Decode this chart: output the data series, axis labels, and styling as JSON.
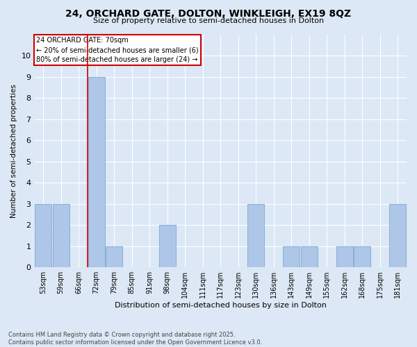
{
  "title": "24, ORCHARD GATE, DOLTON, WINKLEIGH, EX19 8QZ",
  "subtitle": "Size of property relative to semi-detached houses in Dolton",
  "xlabel": "Distribution of semi-detached houses by size in Dolton",
  "ylabel": "Number of semi-detached properties",
  "categories": [
    "53sqm",
    "59sqm",
    "66sqm",
    "72sqm",
    "79sqm",
    "85sqm",
    "91sqm",
    "98sqm",
    "104sqm",
    "111sqm",
    "117sqm",
    "123sqm",
    "130sqm",
    "136sqm",
    "143sqm",
    "149sqm",
    "155sqm",
    "162sqm",
    "168sqm",
    "175sqm",
    "181sqm"
  ],
  "values": [
    3,
    3,
    0,
    9,
    1,
    0,
    0,
    2,
    0,
    0,
    0,
    0,
    3,
    0,
    1,
    1,
    0,
    1,
    1,
    0,
    3
  ],
  "bar_color": "#aec6e8",
  "bar_edge_color": "#7aa8d0",
  "property_line_index": 3,
  "property_line_color": "#cc0000",
  "annotation_title": "24 ORCHARD GATE: 70sqm",
  "annotation_line1": "← 20% of semi-detached houses are smaller (6)",
  "annotation_line2": "80% of semi-detached houses are larger (24) →",
  "annotation_box_edge_color": "#cc0000",
  "ylim": [
    0,
    11
  ],
  "yticks": [
    0,
    1,
    2,
    3,
    4,
    5,
    6,
    7,
    8,
    9,
    10
  ],
  "background_color": "#dce8f5",
  "grid_color": "#ffffff",
  "footer": "Contains HM Land Registry data © Crown copyright and database right 2025.\nContains public sector information licensed under the Open Government Licence v3.0."
}
